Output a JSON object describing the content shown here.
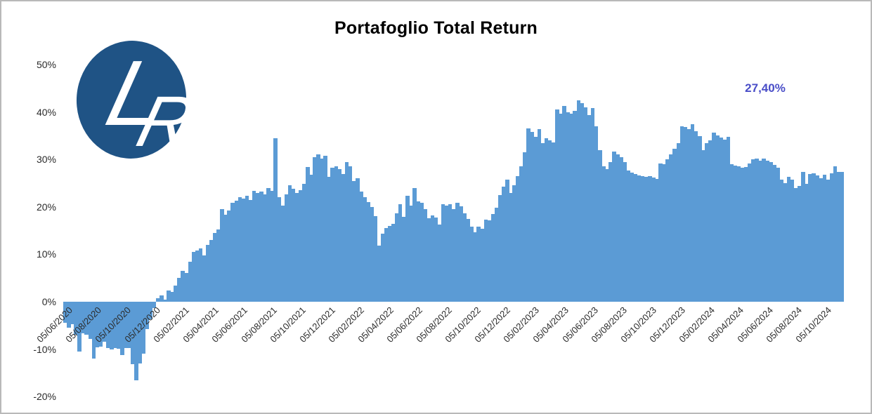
{
  "window": {
    "border_color": "#b9b9b9",
    "background": "#ffffff"
  },
  "logo": {
    "letter_l": "L",
    "letter_r": "R",
    "bg_color": "#1F5385",
    "letter_color": "#ffffff"
  },
  "chart_data": {
    "type": "area",
    "title": "Portafoglio Total Return",
    "series_name": "Portafoglio Total Return",
    "frequency": "weekly",
    "unit": "%",
    "grid": false,
    "legend": "none",
    "bar_color": "#5B9BD5",
    "annotation": {
      "text": "27,40%",
      "color": "#4A4EC8"
    },
    "ylim": [
      -20,
      50.7
    ],
    "y_ticks": [
      "50%",
      "40%",
      "30%",
      "20%",
      "10%",
      "0%",
      "-10%",
      "-20%"
    ],
    "y_tick_values": [
      50,
      40,
      30,
      20,
      10,
      0,
      -10,
      -20
    ],
    "x_tick_labels": [
      "05/06/2020",
      "05/08/2020",
      "05/10/2020",
      "05/12/2020",
      "05/02/2021",
      "05/04/2021",
      "05/06/2021",
      "05/08/2021",
      "05/10/2021",
      "05/12/2021",
      "05/02/2022",
      "05/04/2022",
      "05/06/2022",
      "05/08/2022",
      "05/10/2022",
      "05/12/2022",
      "05/02/2023",
      "05/04/2023",
      "05/06/2023",
      "05/08/2023",
      "05/10/2023",
      "05/12/2023",
      "05/02/2024",
      "05/04/2024",
      "05/06/2024",
      "05/08/2024",
      "05/10/2024"
    ],
    "values": [
      -4.5,
      -5.5,
      -4.8,
      -7.0,
      -10.5,
      -6.6,
      -6.9,
      -7.9,
      -12.0,
      -9.6,
      -9.4,
      -8.4,
      -9.7,
      -10.0,
      -9.8,
      -9.9,
      -11.3,
      -9.7,
      -9.8,
      -13.2,
      -16.5,
      -13.0,
      -10.9,
      -5.7,
      -3.7,
      -1.3,
      0.7,
      1.3,
      0.5,
      2.4,
      2.0,
      3.4,
      5.0,
      6.5,
      6.0,
      8.5,
      10.5,
      10.8,
      11.2,
      9.8,
      12.0,
      13.0,
      14.5,
      15.2,
      19.6,
      18.3,
      19.3,
      20.9,
      21.3,
      22.0,
      21.8,
      22.4,
      21.5,
      23.4,
      23.0,
      23.2,
      22.6,
      23.9,
      23.4,
      34.5,
      22.0,
      20.3,
      22.6,
      24.5,
      23.8,
      23.0,
      23.5,
      24.8,
      28.4,
      26.8,
      30.5,
      31.0,
      30.2,
      30.7,
      26.4,
      28.3,
      28.5,
      28.0,
      26.9,
      29.4,
      28.6,
      25.5,
      26.0,
      23.2,
      22.0,
      21.0,
      19.9,
      18.0,
      11.8,
      14.3,
      15.5,
      16.0,
      16.4,
      18.6,
      20.6,
      17.9,
      22.3,
      20.3,
      24.0,
      21.1,
      20.8,
      19.5,
      17.6,
      18.2,
      17.8,
      16.2,
      20.5,
      20.3,
      20.5,
      19.5,
      20.8,
      20.1,
      18.7,
      17.4,
      15.9,
      14.6,
      15.9,
      15.4,
      17.3,
      17.2,
      18.5,
      19.8,
      22.5,
      24.2,
      25.8,
      23.0,
      24.5,
      26.5,
      28.5,
      31.5,
      36.5,
      35.8,
      34.7,
      36.4,
      33.5,
      34.5,
      34.0,
      33.6,
      40.6,
      39.7,
      41.2,
      40.0,
      39.6,
      40.3,
      42.5,
      41.9,
      41.0,
      39.4,
      40.8,
      37.0,
      32.0,
      28.6,
      28.0,
      29.5,
      31.7,
      31.0,
      30.5,
      29.4,
      27.6,
      27.2,
      26.9,
      26.7,
      26.5,
      26.3,
      26.5,
      26.2,
      25.9,
      29.2,
      29.0,
      30.0,
      31.0,
      32.2,
      33.5,
      37.0,
      36.8,
      36.4,
      37.5,
      36.0,
      34.9,
      32.0,
      33.5,
      34.0,
      35.7,
      35.0,
      34.6,
      34.2,
      34.8,
      29.0,
      28.7,
      28.5,
      28.2,
      28.4,
      29.2,
      30.0,
      30.2,
      29.7,
      30.2,
      29.8,
      29.5,
      28.8,
      28.2,
      25.7,
      25.0,
      26.4,
      25.8,
      24.0,
      24.4,
      27.4,
      24.8,
      26.9,
      27.1,
      26.6,
      26.1,
      26.8,
      25.8,
      27.1,
      28.6,
      27.3,
      27.4
    ]
  }
}
